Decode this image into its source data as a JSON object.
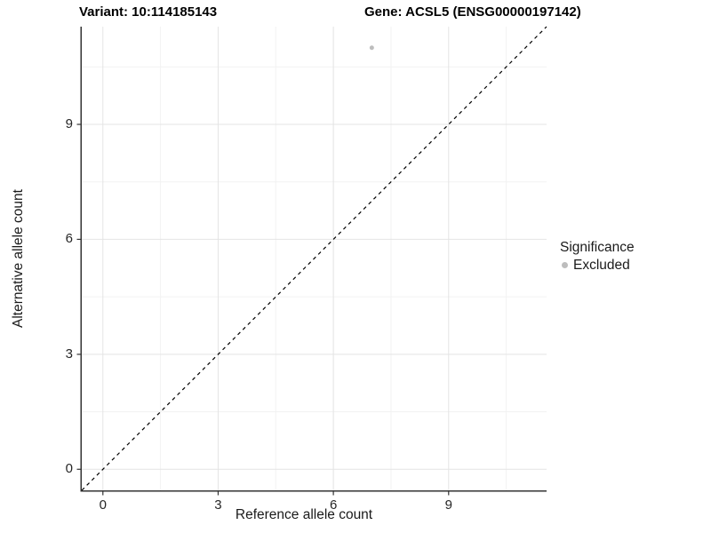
{
  "chart_data": {
    "type": "scatter",
    "title_left": "Variant: 10:114185143",
    "title_right": "Gene: ACSL5 (ENSG00000197142)",
    "xlabel": "Reference allele count",
    "ylabel": "Alternative allele count",
    "xlim": [
      -0.55,
      11.55
    ],
    "ylim": [
      -0.55,
      11.55
    ],
    "x_ticks": [
      0,
      3,
      6,
      9
    ],
    "y_ticks": [
      0,
      3,
      6,
      9
    ],
    "x_minor_ticks": [
      1.5,
      4.5,
      7.5,
      10.5
    ],
    "y_minor_ticks": [
      1.5,
      4.5,
      7.5,
      10.5
    ],
    "grid": "major and minor, light gray on white",
    "identity_line": {
      "style": "dashed",
      "x1": -0.55,
      "y1": -0.55,
      "x2": 11.55,
      "y2": 11.55,
      "color": "#000000"
    },
    "series": [
      {
        "name": "Excluded",
        "color": "#bdbdbd",
        "point_radius": 2.5,
        "points": [
          [
            7,
            11
          ]
        ]
      }
    ],
    "legend": {
      "title": "Significance",
      "position": "right",
      "items": [
        {
          "label": "Excluded",
          "color": "#bdbdbd",
          "icon": "point-icon"
        }
      ]
    },
    "colors": {
      "background": "#ffffff",
      "axis_line": "#333333",
      "major_grid": "#e4e4e4",
      "minor_grid": "#f2f2f2",
      "point": "#bdbdbd",
      "text": "#1a1a1a"
    }
  }
}
